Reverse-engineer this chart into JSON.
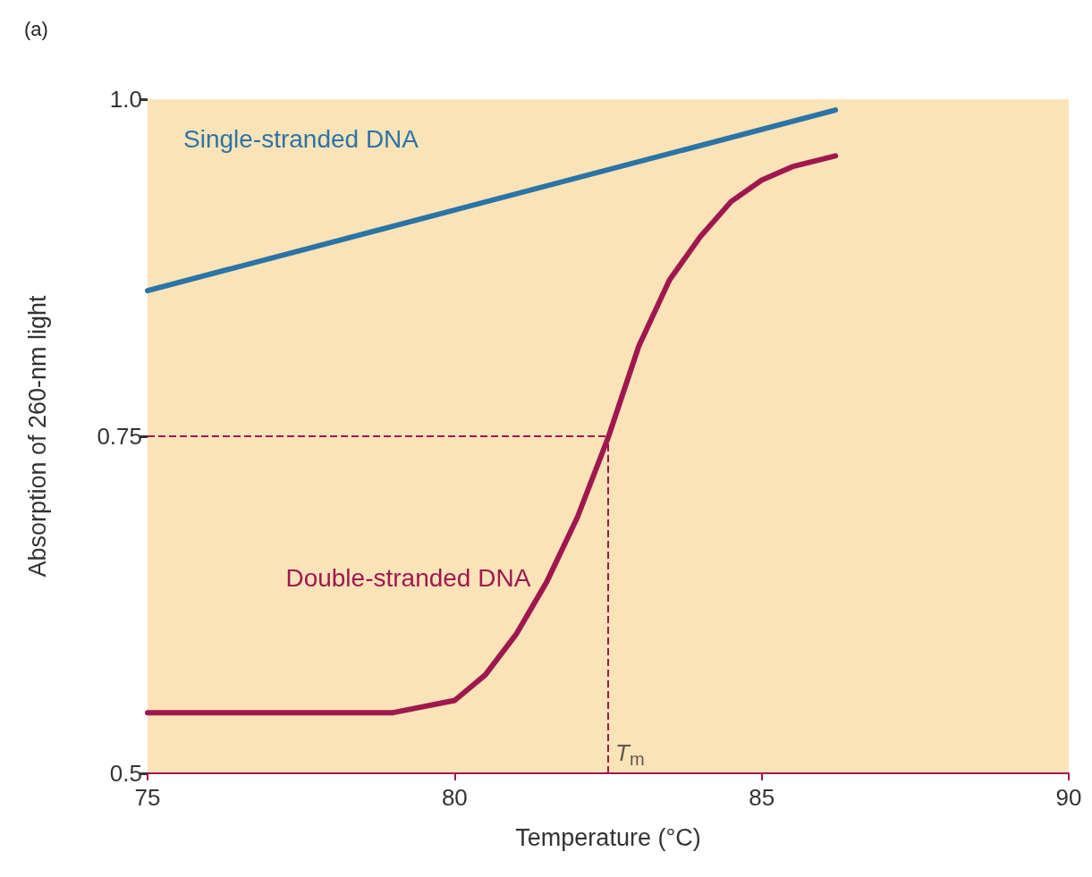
{
  "chart_data": {
    "type": "line",
    "title": "(a)",
    "xlabel": "Temperature (°C)",
    "ylabel": "Absorption of 260-nm light",
    "xlim": [
      75,
      90
    ],
    "xticks": [
      75,
      80,
      85,
      90
    ],
    "ylim": [
      0.5,
      1.0
    ],
    "yticks": [
      0.5,
      0.75,
      {
        "value": 1.0,
        "label": "1.0"
      }
    ],
    "grid": false,
    "legend": false,
    "marker": "none",
    "line_style": "solid",
    "series": [
      {
        "name": "Single-stranded DNA",
        "color": "#2b74a6",
        "x": [
          75,
          86.2
        ],
        "values": [
          0.858,
          0.992
        ]
      },
      {
        "name": "Double-stranded DNA",
        "color": "#a0174f",
        "x": [
          75,
          79,
          80,
          80.5,
          81,
          81.5,
          82,
          82.5,
          83,
          83.5,
          84,
          84.5,
          85,
          85.5,
          86.2
        ],
        "values": [
          0.545,
          0.545,
          0.554,
          0.573,
          0.603,
          0.642,
          0.69,
          0.749,
          0.817,
          0.866,
          0.898,
          0.924,
          0.94,
          0.95,
          0.958
        ]
      }
    ],
    "ref_lines": [
      {
        "axis": "y",
        "value": 0.75,
        "label": null,
        "color": "#a0174f",
        "line_style": "dashed"
      },
      {
        "axis": "x",
        "value": 82.5,
        "label": "T$_{m}$",
        "color": "#a0174f",
        "line_style": "dashed"
      }
    ]
  }
}
